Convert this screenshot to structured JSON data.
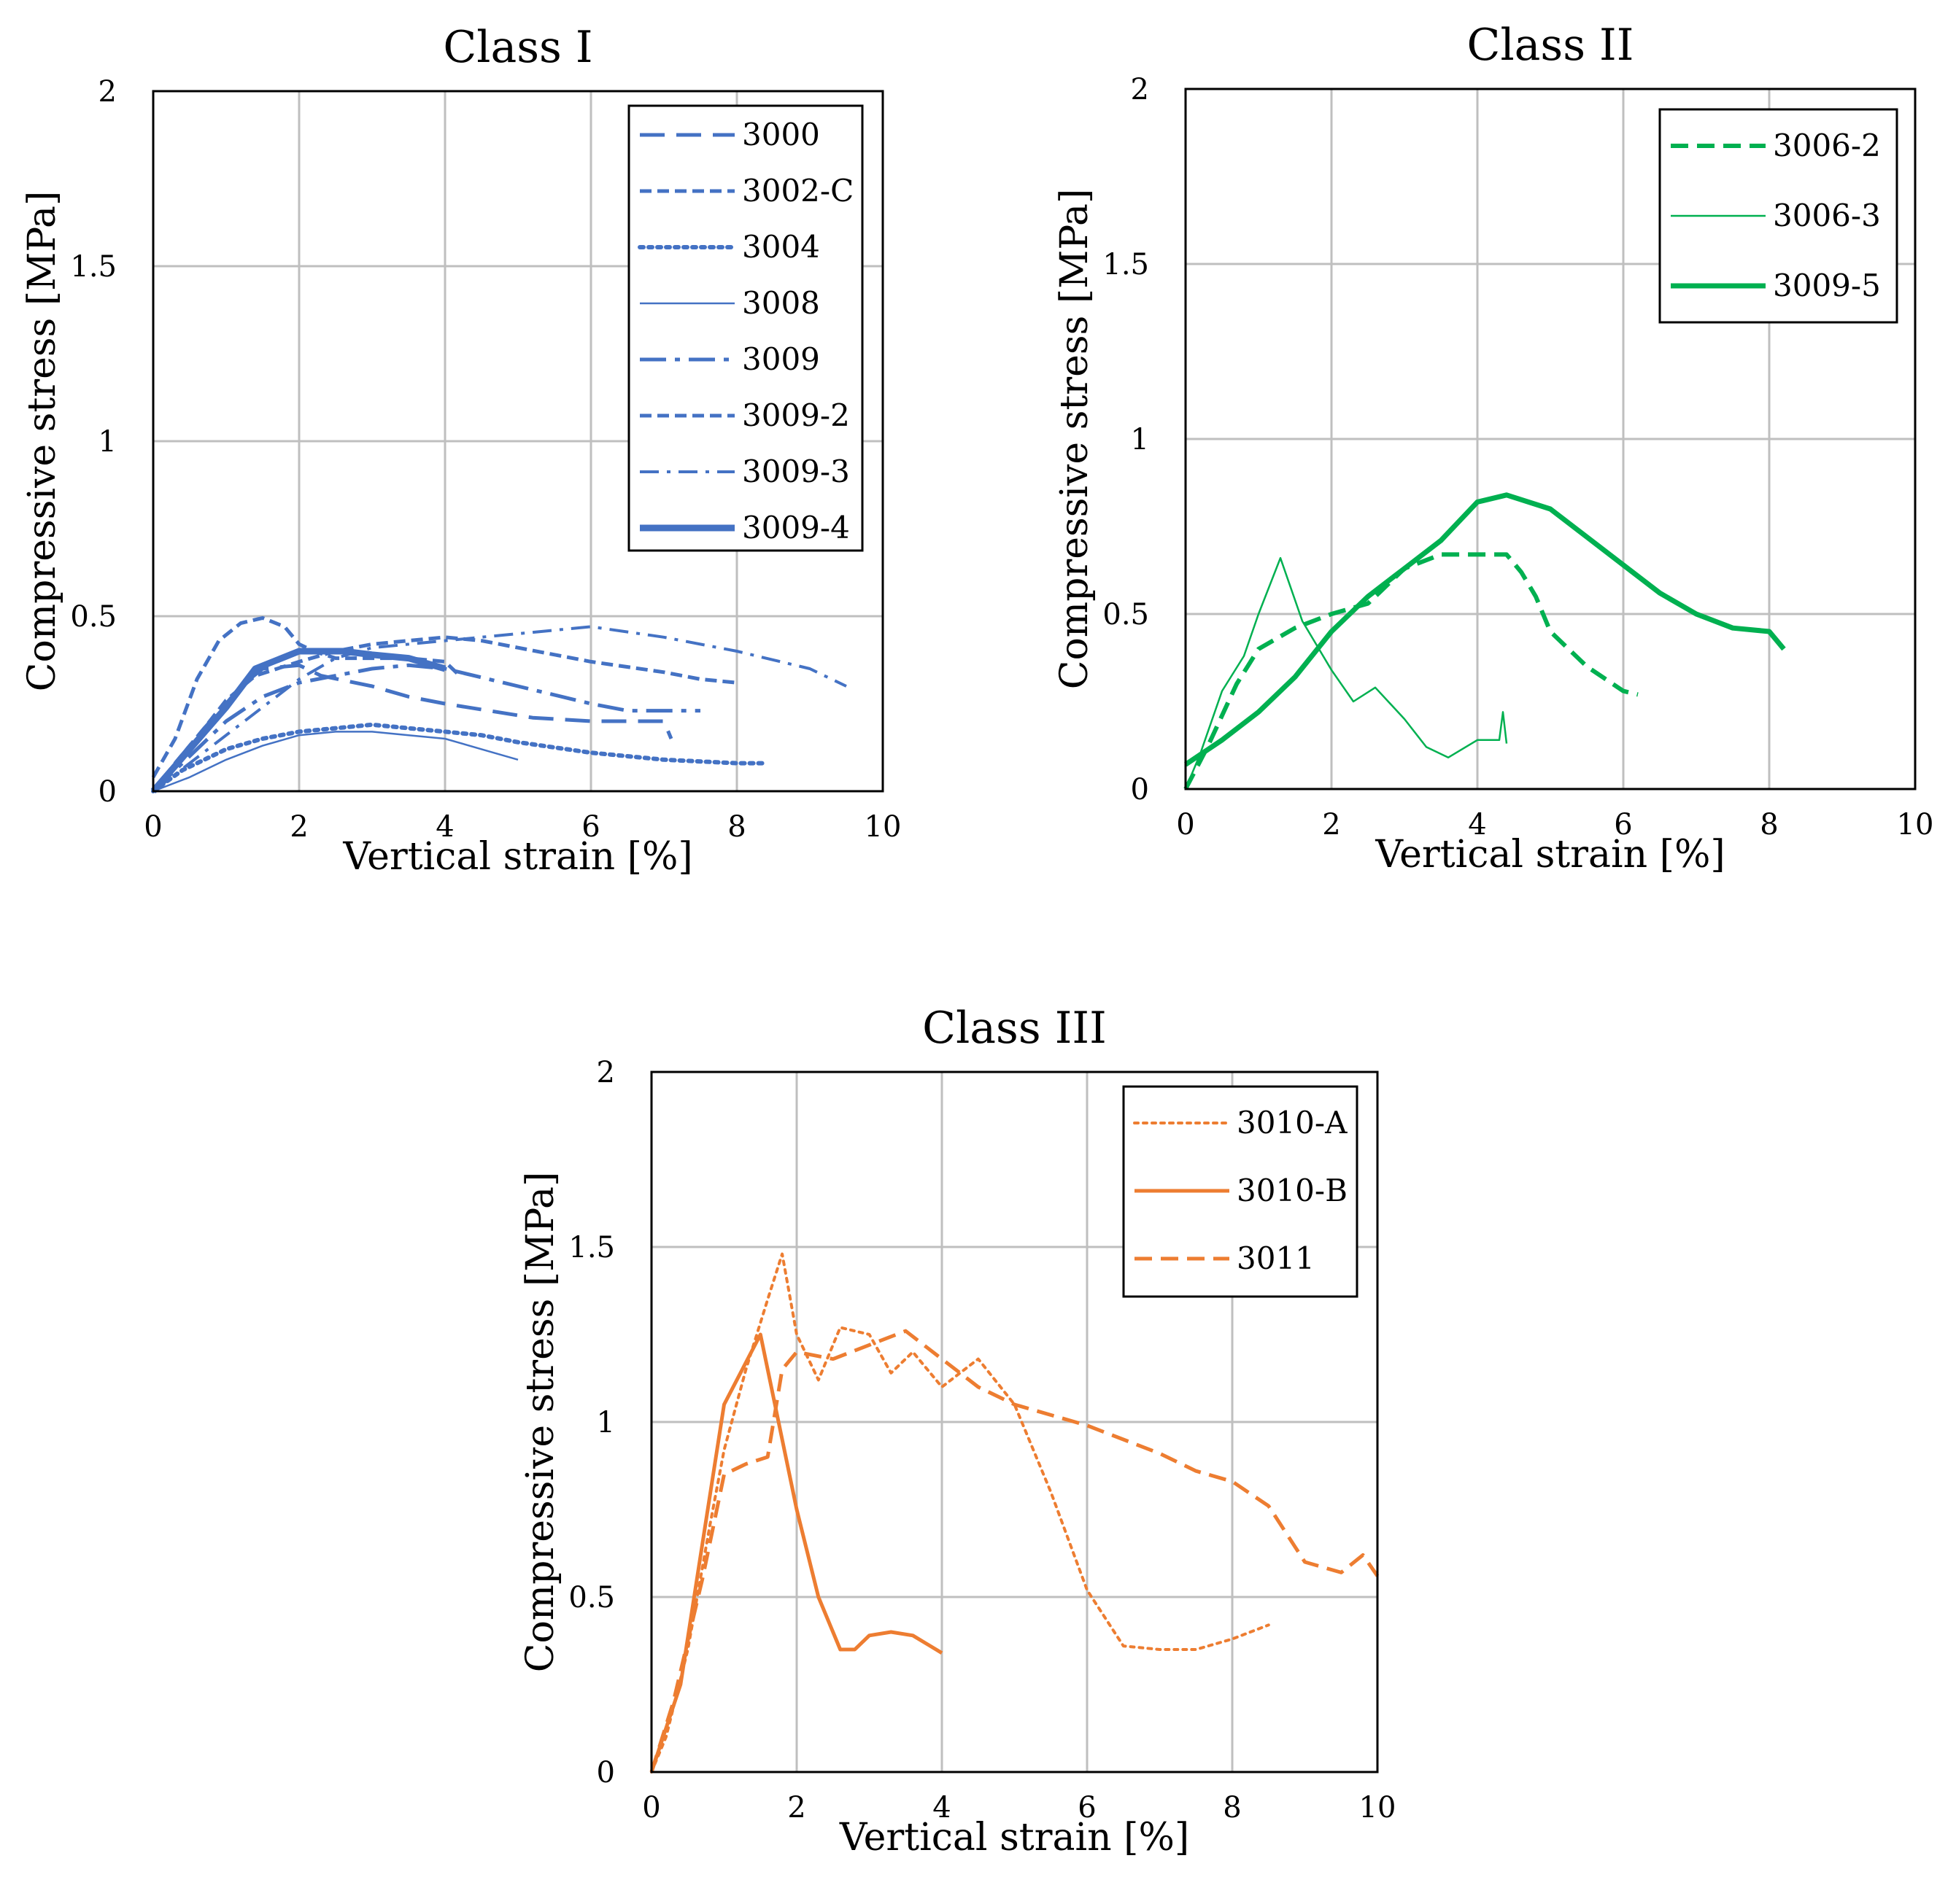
{
  "chart_data": [
    {
      "type": "line",
      "title": "Class I",
      "xlabel": "Vertical strain [%]",
      "ylabel": "Compressive stress [MPa]",
      "xlim": [
        0,
        10
      ],
      "ylim": [
        0,
        2
      ],
      "xticks": [
        "0",
        "2",
        "4",
        "6",
        "8",
        "10"
      ],
      "yticks": [
        "0",
        "0.5",
        "1",
        "1.5",
        "2"
      ],
      "grid": true,
      "legend_position": "top-right",
      "color": "#4472c4",
      "series": [
        {
          "name": "3000",
          "dash": "long-dash",
          "width": 5,
          "x": [
            0,
            0.3,
            0.7,
            1.0,
            1.2,
            1.5,
            2.0,
            2.3,
            3.0,
            3.5,
            4.0,
            4.6,
            5.2,
            6.0,
            7.0,
            7.1
          ],
          "y": [
            0,
            0.08,
            0.18,
            0.25,
            0.3,
            0.35,
            0.36,
            0.33,
            0.3,
            0.27,
            0.25,
            0.23,
            0.21,
            0.2,
            0.2,
            0.15
          ]
        },
        {
          "name": "3002-C",
          "dash": "short-dash",
          "width": 5,
          "x": [
            0,
            0.3,
            0.7,
            1.0,
            1.4,
            2.0,
            2.5,
            3.0,
            3.5,
            4.0,
            4.5,
            5.0,
            6.0,
            7.0,
            7.5,
            8.0
          ],
          "y": [
            0,
            0.08,
            0.18,
            0.26,
            0.33,
            0.37,
            0.4,
            0.42,
            0.43,
            0.44,
            0.43,
            0.41,
            0.37,
            0.34,
            0.32,
            0.31
          ]
        },
        {
          "name": "3004",
          "dash": "dot",
          "width": 6,
          "x": [
            0,
            0.4,
            1.0,
            1.5,
            2.0,
            2.5,
            3.0,
            3.5,
            4.0,
            4.5,
            5.0,
            6.0,
            7.0,
            8.0,
            8.4
          ],
          "y": [
            0,
            0.06,
            0.12,
            0.15,
            0.17,
            0.18,
            0.19,
            0.18,
            0.17,
            0.16,
            0.14,
            0.11,
            0.09,
            0.08,
            0.08
          ]
        },
        {
          "name": "3008",
          "dash": "solid",
          "width": 2.5,
          "x": [
            0,
            0.5,
            1.0,
            1.5,
            2.0,
            2.5,
            3.0,
            3.5,
            4.0,
            4.5,
            5.0
          ],
          "y": [
            0,
            0.04,
            0.09,
            0.13,
            0.16,
            0.17,
            0.17,
            0.16,
            0.15,
            0.12,
            0.09
          ]
        },
        {
          "name": "3009",
          "dash": "dash-dot-long",
          "width": 5,
          "x": [
            0,
            0.5,
            1.0,
            1.5,
            2.0,
            2.5,
            3.0,
            3.5,
            4.0,
            5.0,
            6.0,
            6.5,
            7.0,
            7.5
          ],
          "y": [
            0,
            0.1,
            0.2,
            0.27,
            0.31,
            0.33,
            0.35,
            0.36,
            0.35,
            0.3,
            0.25,
            0.23,
            0.23,
            0.23
          ]
        },
        {
          "name": "3009-2",
          "dash": "short-dash",
          "width": 5,
          "x": [
            0,
            0.3,
            0.6,
            0.9,
            1.2,
            1.5,
            1.8,
            2.0,
            2.2,
            2.5,
            3.0,
            3.5,
            4.0,
            4.2
          ],
          "y": [
            0.04,
            0.15,
            0.32,
            0.43,
            0.48,
            0.495,
            0.47,
            0.42,
            0.4,
            0.38,
            0.38,
            0.38,
            0.37,
            0.33
          ]
        },
        {
          "name": "3009-3",
          "dash": "dash-dot",
          "width": 4,
          "x": [
            0,
            0.5,
            1.0,
            1.5,
            2.0,
            2.5,
            3.0,
            4.0,
            5.0,
            6.0,
            7.0,
            8.0,
            9.0,
            9.5
          ],
          "y": [
            0,
            0.08,
            0.16,
            0.24,
            0.32,
            0.38,
            0.41,
            0.43,
            0.45,
            0.47,
            0.44,
            0.4,
            0.35,
            0.3
          ]
        },
        {
          "name": "3009-4",
          "dash": "solid",
          "width": 9,
          "x": [
            0,
            0.5,
            1.0,
            1.4,
            2.0,
            2.6,
            3.0,
            3.5,
            4.0
          ],
          "y": [
            0,
            0.12,
            0.24,
            0.35,
            0.4,
            0.4,
            0.39,
            0.38,
            0.35
          ]
        }
      ]
    },
    {
      "type": "line",
      "title": "Class II",
      "xlabel": "Vertical strain [%]",
      "ylabel": "Compressive stress [MPa]",
      "xlim": [
        0,
        10
      ],
      "ylim": [
        0,
        2
      ],
      "xticks": [
        "0",
        "2",
        "4",
        "6",
        "8",
        "10"
      ],
      "yticks": [
        "0",
        "0.5",
        "1",
        "1.5",
        "2"
      ],
      "grid": true,
      "legend_position": "top-right",
      "color": "#00b050",
      "series": [
        {
          "name": "3006-2",
          "dash": "dash",
          "width": 6,
          "x": [
            0,
            0.3,
            0.7,
            1.0,
            1.5,
            2.0,
            2.5,
            3.0,
            3.5,
            4.0,
            4.4,
            4.6,
            4.8,
            5.0,
            5.5,
            6.0,
            6.2
          ],
          "y": [
            0,
            0.12,
            0.3,
            0.4,
            0.46,
            0.5,
            0.53,
            0.63,
            0.67,
            0.67,
            0.67,
            0.62,
            0.55,
            0.45,
            0.35,
            0.28,
            0.27
          ]
        },
        {
          "name": "3006-3",
          "dash": "solid",
          "width": 2.5,
          "x": [
            0,
            0.2,
            0.5,
            0.8,
            1.0,
            1.3,
            1.6,
            2.0,
            2.3,
            2.6,
            3.0,
            3.3,
            3.6,
            4.0,
            4.3,
            4.35,
            4.4
          ],
          "y": [
            0,
            0.1,
            0.28,
            0.38,
            0.5,
            0.66,
            0.48,
            0.34,
            0.25,
            0.29,
            0.2,
            0.12,
            0.09,
            0.14,
            0.14,
            0.22,
            0.13
          ]
        },
        {
          "name": "3009-5",
          "dash": "solid",
          "width": 7,
          "x": [
            0,
            0.5,
            1.0,
            1.5,
            2.0,
            2.5,
            3.0,
            3.5,
            4.0,
            4.4,
            5.0,
            5.5,
            6.0,
            6.5,
            7.0,
            7.5,
            8.0,
            8.2
          ],
          "y": [
            0.07,
            0.14,
            0.22,
            0.32,
            0.45,
            0.55,
            0.63,
            0.71,
            0.82,
            0.84,
            0.8,
            0.72,
            0.64,
            0.56,
            0.5,
            0.46,
            0.45,
            0.4
          ]
        }
      ]
    },
    {
      "type": "line",
      "title": "Class III",
      "xlabel": "Vertical strain [%]",
      "ylabel": "Compressive stress [MPa]",
      "xlim": [
        0,
        10
      ],
      "ylim": [
        0,
        2
      ],
      "xticks": [
        "0",
        "2",
        "4",
        "6",
        "8",
        "10"
      ],
      "yticks": [
        "0",
        "0.5",
        "1",
        "1.5",
        "2"
      ],
      "grid": true,
      "legend_position": "top-right",
      "color": "#ed7d31",
      "series": [
        {
          "name": "3010-A",
          "dash": "dot",
          "width": 4,
          "x": [
            0,
            0.2,
            0.5,
            0.8,
            1.0,
            1.3,
            1.6,
            1.8,
            2.0,
            2.3,
            2.6,
            3.0,
            3.3,
            3.6,
            4.0,
            4.5,
            5.0,
            5.5,
            6.0,
            6.5,
            7.0,
            7.5,
            8.0,
            8.5
          ],
          "y": [
            0,
            0.1,
            0.35,
            0.7,
            0.92,
            1.15,
            1.35,
            1.48,
            1.25,
            1.12,
            1.27,
            1.25,
            1.14,
            1.2,
            1.1,
            1.18,
            1.05,
            0.8,
            0.52,
            0.36,
            0.35,
            0.35,
            0.38,
            0.42
          ]
        },
        {
          "name": "3010-B",
          "dash": "solid",
          "width": 5,
          "x": [
            0,
            0.4,
            0.7,
            1.0,
            1.5,
            1.8,
            2.0,
            2.3,
            2.6,
            2.8,
            3.0,
            3.3,
            3.6,
            4.0
          ],
          "y": [
            0,
            0.25,
            0.65,
            1.05,
            1.25,
            0.95,
            0.75,
            0.5,
            0.35,
            0.35,
            0.39,
            0.4,
            0.39,
            0.34
          ]
        },
        {
          "name": "3011",
          "dash": "dash",
          "width": 5,
          "x": [
            0,
            0.3,
            0.7,
            1.0,
            1.3,
            1.6,
            1.8,
            2.0,
            2.5,
            3.0,
            3.5,
            4.0,
            4.5,
            5.0,
            6.0,
            7.0,
            7.5,
            8.0,
            8.5,
            9.0,
            9.5,
            9.8,
            10.0
          ],
          "y": [
            0,
            0.2,
            0.55,
            0.85,
            0.88,
            0.9,
            1.15,
            1.2,
            1.18,
            1.22,
            1.26,
            1.18,
            1.1,
            1.05,
            0.99,
            0.91,
            0.86,
            0.83,
            0.76,
            0.6,
            0.57,
            0.62,
            0.56
          ]
        }
      ]
    }
  ]
}
